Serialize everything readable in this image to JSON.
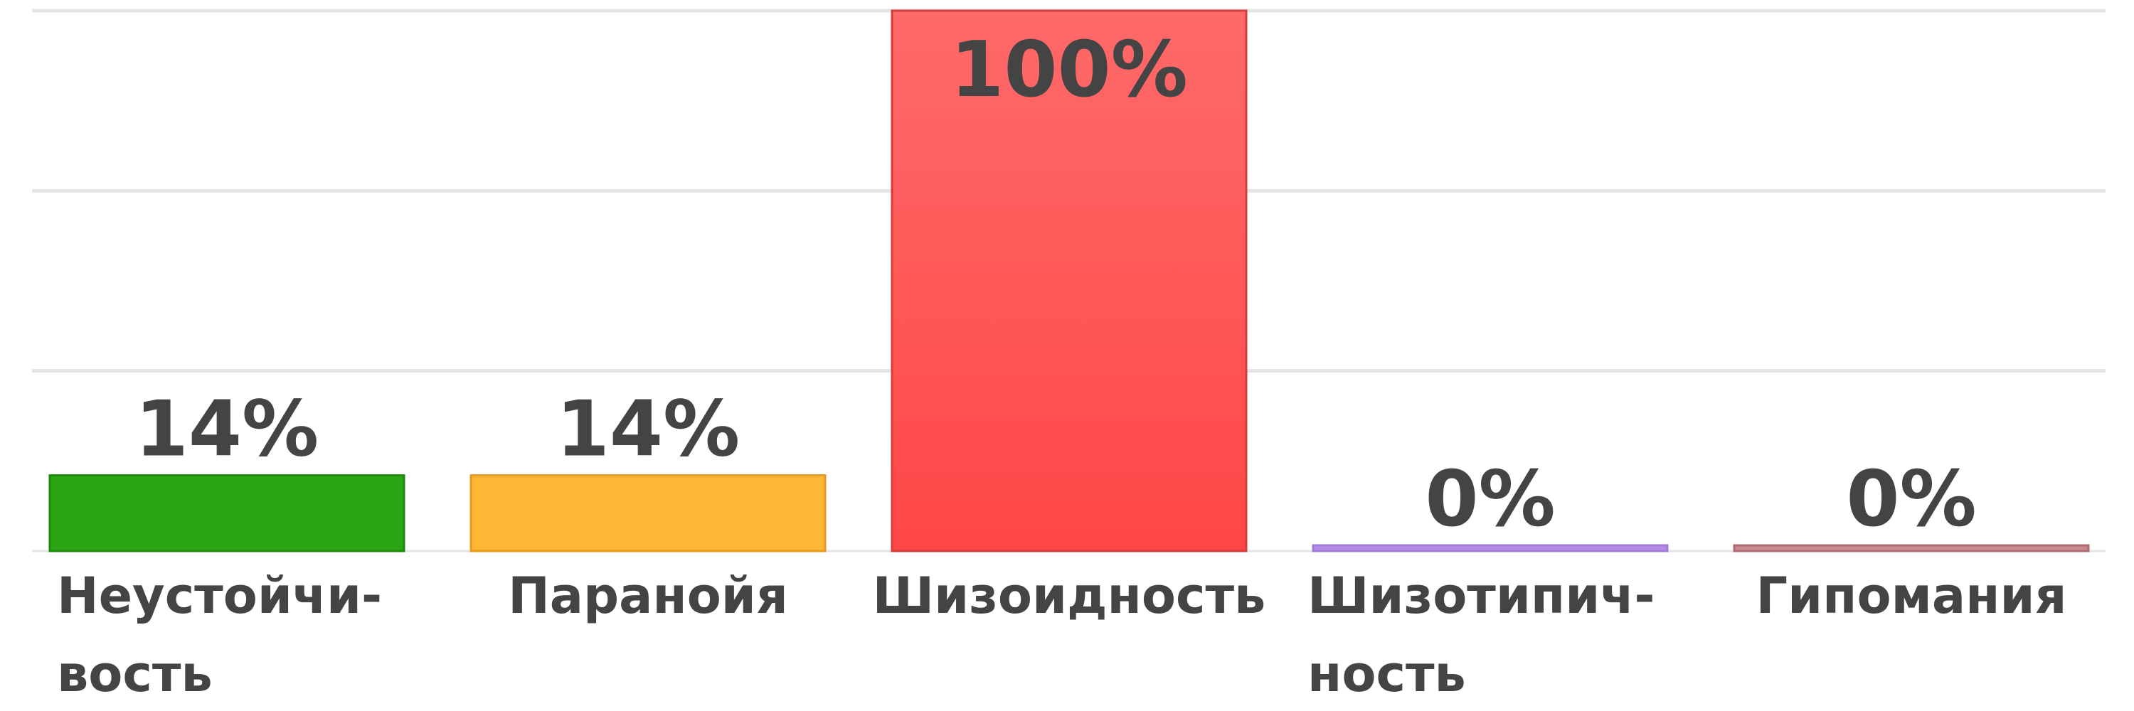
{
  "chart_data": {
    "type": "bar",
    "categories": [
      [
        "Неустойчи-",
        "вость"
      ],
      [
        "Паранойя"
      ],
      [
        "Шизоидность"
      ],
      [
        "Шизотипич-",
        "ность"
      ],
      [
        "Гипомания"
      ]
    ],
    "values": [
      14,
      14,
      100,
      0,
      0
    ],
    "value_labels": [
      "14%",
      "14%",
      "100%",
      "0%",
      "0%"
    ],
    "colors": [
      {
        "fill": "#2aa614",
        "stroke": "#1e8a0c"
      },
      {
        "fill": "#ffb636",
        "stroke": "#e59a20"
      },
      {
        "fill": "#ff4646",
        "fill_top": "#ff6a6a",
        "stroke": "#d63c3c"
      },
      {
        "fill": "#b58de8",
        "stroke": "#a27bd6"
      },
      {
        "fill": "#c9878e",
        "stroke": "#b06c74"
      }
    ],
    "ylim": [
      0,
      100
    ],
    "grid": true,
    "title": "",
    "xlabel": "",
    "ylabel": ""
  }
}
